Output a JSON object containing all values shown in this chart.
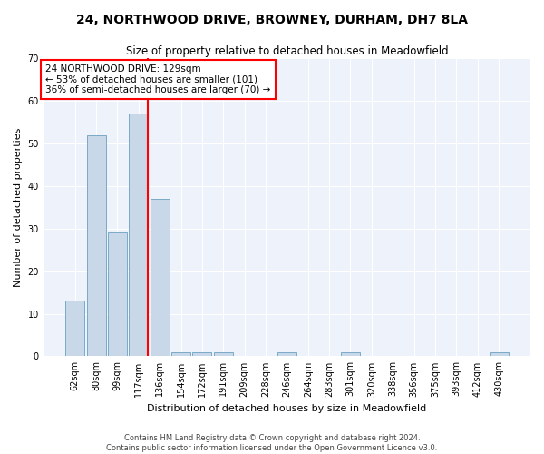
{
  "title": "24, NORTHWOOD DRIVE, BROWNEY, DURHAM, DH7 8LA",
  "subtitle": "Size of property relative to detached houses in Meadowfield",
  "xlabel": "Distribution of detached houses by size in Meadowfield",
  "ylabel": "Number of detached properties",
  "categories": [
    "62sqm",
    "80sqm",
    "99sqm",
    "117sqm",
    "136sqm",
    "154sqm",
    "172sqm",
    "191sqm",
    "209sqm",
    "228sqm",
    "246sqm",
    "264sqm",
    "283sqm",
    "301sqm",
    "320sqm",
    "338sqm",
    "356sqm",
    "375sqm",
    "393sqm",
    "412sqm",
    "430sqm"
  ],
  "values": [
    13,
    52,
    29,
    57,
    37,
    1,
    1,
    1,
    0,
    0,
    1,
    0,
    0,
    1,
    0,
    0,
    0,
    0,
    0,
    0,
    1
  ],
  "bar_color": "#c8d8e8",
  "bar_edge_color": "#7aaac8",
  "annotation_text_line1": "24 NORTHWOOD DRIVE: 129sqm",
  "annotation_text_line2": "← 53% of detached houses are smaller (101)",
  "annotation_text_line3": "36% of semi-detached houses are larger (70) →",
  "annotation_box_color": "white",
  "annotation_box_edge_color": "red",
  "vline_color": "red",
  "vline_x": 3.45,
  "ylim": [
    0,
    70
  ],
  "yticks": [
    0,
    10,
    20,
    30,
    40,
    50,
    60,
    70
  ],
  "background_color": "#eef2fb",
  "footer_line1": "Contains HM Land Registry data © Crown copyright and database right 2024.",
  "footer_line2": "Contains public sector information licensed under the Open Government Licence v3.0.",
  "title_fontsize": 10,
  "subtitle_fontsize": 8.5,
  "annotation_fontsize": 7.5,
  "tick_fontsize": 7,
  "ylabel_fontsize": 8,
  "xlabel_fontsize": 8,
  "footer_fontsize": 6
}
